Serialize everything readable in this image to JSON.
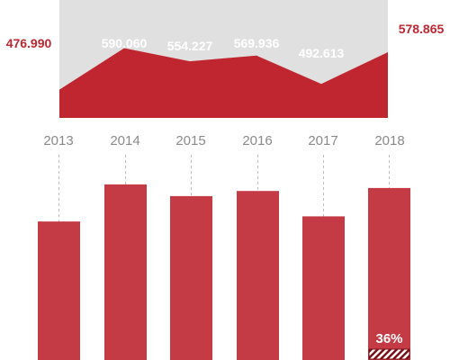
{
  "colors": {
    "area_fill": "#c0262f",
    "area_background": "#e0e0e0",
    "value_outside": "#c0262f",
    "value_inside": "#ffffff",
    "year_text": "#8a8a8a",
    "bar_fill": "#c43a45",
    "dashed_line": "#bdbdbd",
    "hatch_stripe": "#7a1018"
  },
  "chart_data": [
    {
      "type": "area",
      "categories": [
        "2013",
        "2014",
        "2015",
        "2016",
        "2017",
        "2018"
      ],
      "values": [
        476.99,
        590.06,
        554.227,
        569.936,
        492.613,
        578.865
      ],
      "value_labels": [
        "476.990",
        "590.060",
        "554.227",
        "569.936",
        "492.613",
        "578.865"
      ]
    },
    {
      "type": "bar",
      "categories": [
        "2013",
        "2014",
        "2015",
        "2016",
        "2017",
        "2018"
      ],
      "values": [
        476.99,
        590.06,
        554.227,
        569.936,
        492.613,
        578.865
      ],
      "highlight": {
        "category": "2018",
        "share": 0.36,
        "label": "36%"
      }
    }
  ]
}
